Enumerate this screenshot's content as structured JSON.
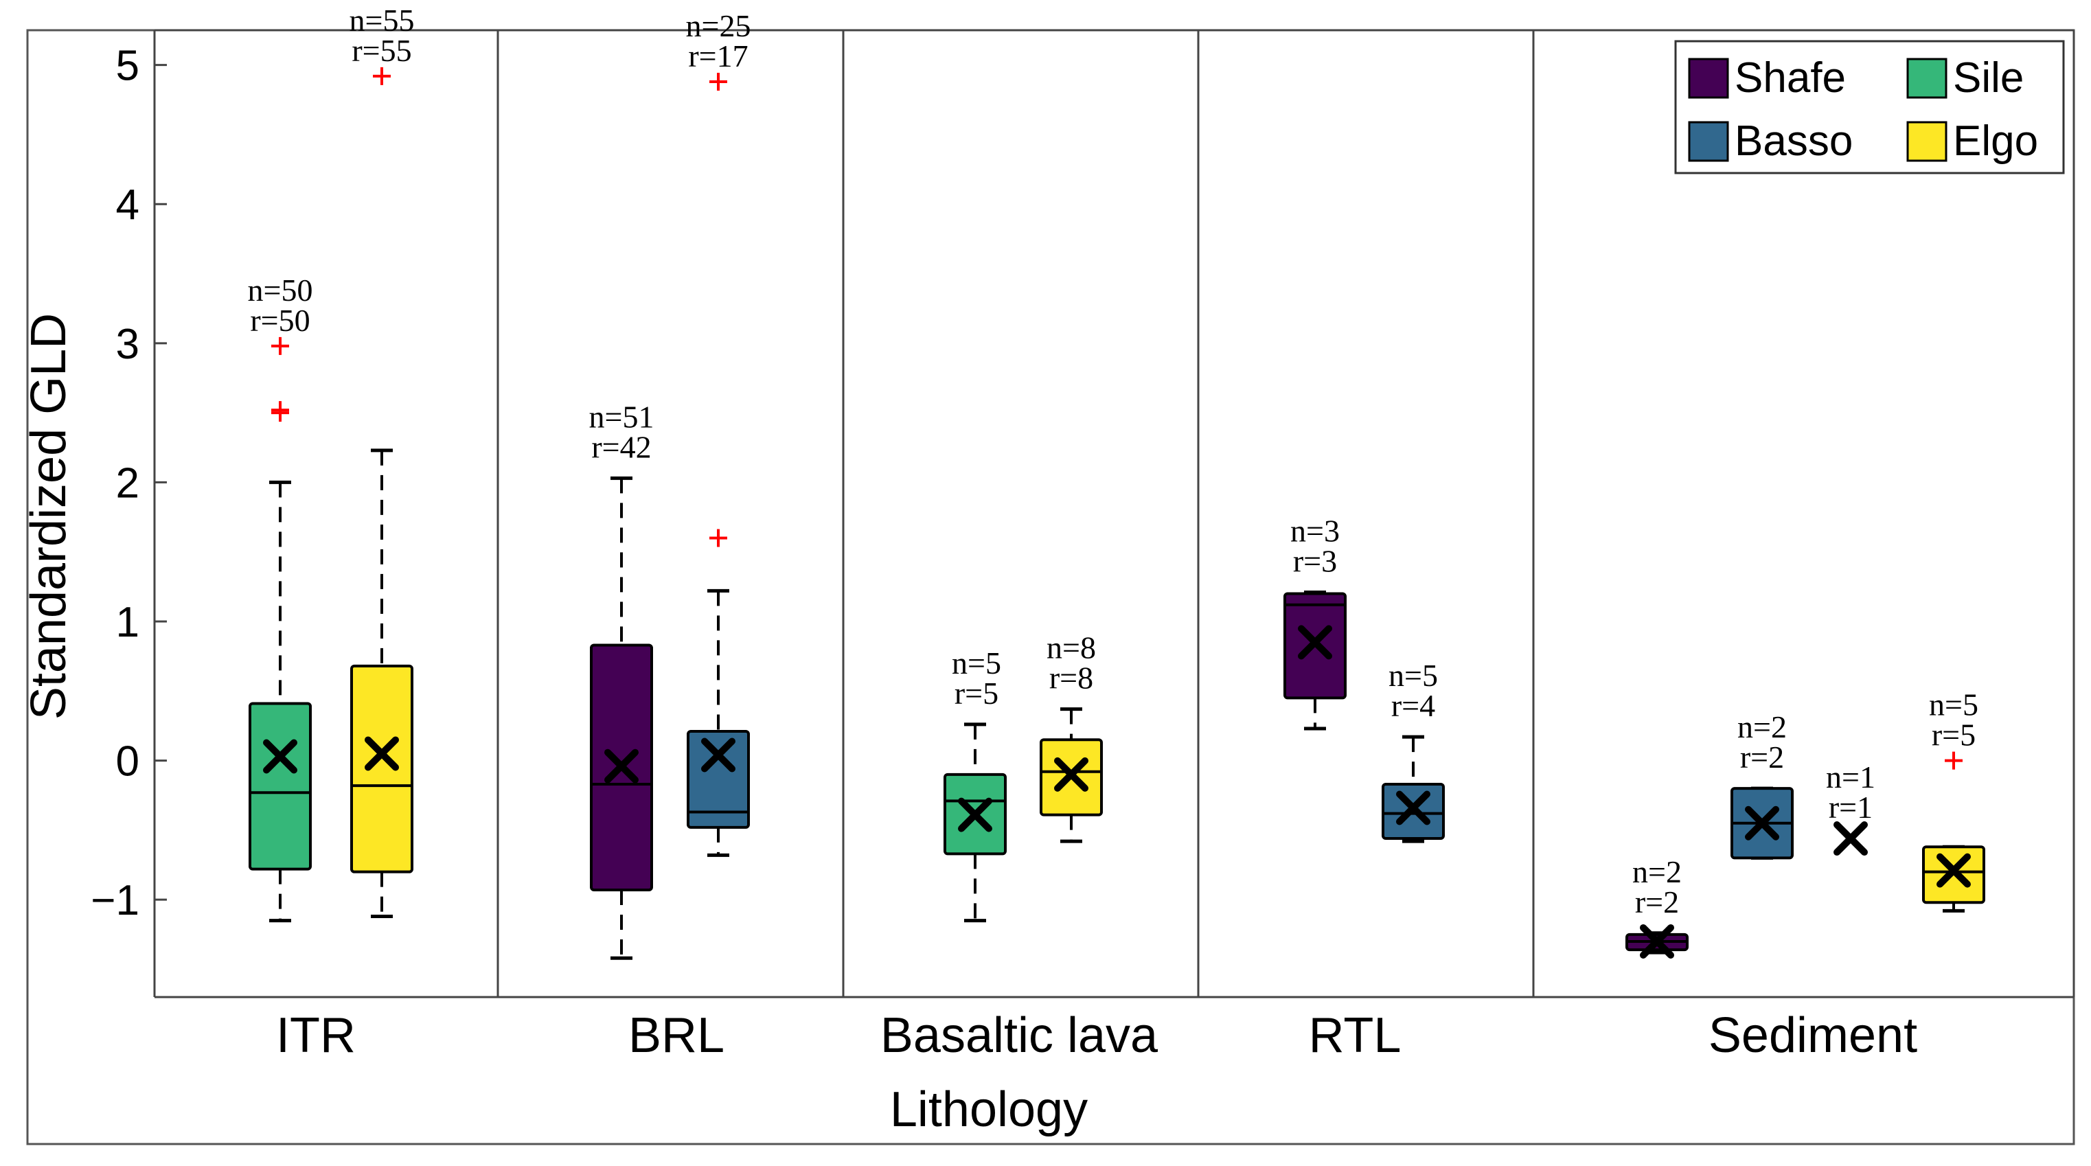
{
  "chart_data": {
    "type": "box",
    "title": "",
    "xlabel": "Lithology",
    "ylabel": "Standardized GLD",
    "ylim": [
      -1.7,
      5.25
    ],
    "yticks": [
      -1,
      0,
      1,
      2,
      3,
      4,
      5
    ],
    "ytick_labels": [
      "−1",
      "0",
      "1",
      "2",
      "3",
      "4",
      "5"
    ],
    "grid": false,
    "legend_position": "top-right",
    "colors": {
      "Shafe": "#440154",
      "Basso": "#31688e",
      "Sile": "#35b779",
      "Elgo": "#fde725",
      "outlier": "#ff0000",
      "line": "#000000"
    },
    "legend": [
      "Shafe",
      "Sile",
      "Basso",
      "Elgo"
    ],
    "groups": [
      {
        "category": "ITR",
        "boxes": [
          {
            "series": "Sile",
            "whisker_low": -1.15,
            "q1": -0.78,
            "median": -0.23,
            "q3": 0.41,
            "whisker_high": 2.0,
            "mean": 0.03,
            "outliers": [
              2.5,
              2.52,
              2.98
            ],
            "n_label": "n=50",
            "r_label": "r=50"
          },
          {
            "series": "Elgo",
            "whisker_low": -1.12,
            "q1": -0.8,
            "median": -0.18,
            "q3": 0.68,
            "whisker_high": 2.23,
            "mean": 0.05,
            "outliers": [
              4.92
            ],
            "n_label": "n=55",
            "r_label": "r=55"
          }
        ]
      },
      {
        "category": "BRL",
        "boxes": [
          {
            "series": "Shafe",
            "whisker_low": -1.42,
            "q1": -0.93,
            "median": -0.17,
            "q3": 0.83,
            "whisker_high": 2.03,
            "mean": -0.04,
            "outliers": [],
            "n_label": "n=51",
            "r_label": "r=42"
          },
          {
            "series": "Basso",
            "whisker_low": -0.68,
            "q1": -0.48,
            "median": -0.37,
            "q3": 0.21,
            "whisker_high": 1.22,
            "mean": 0.04,
            "outliers": [
              1.6,
              4.88
            ],
            "n_label": "n=25",
            "r_label": "r=17"
          }
        ]
      },
      {
        "category": "Basaltic lava",
        "boxes": [
          {
            "series": "Sile",
            "whisker_low": -1.15,
            "q1": -0.67,
            "median": -0.29,
            "q3": -0.1,
            "whisker_high": 0.26,
            "mean": -0.39,
            "outliers": [],
            "n_label": "n=5",
            "r_label": "r=5"
          },
          {
            "series": "Elgo",
            "whisker_low": -0.58,
            "q1": -0.39,
            "median": -0.08,
            "q3": 0.15,
            "whisker_high": 0.37,
            "mean": -0.1,
            "outliers": [],
            "n_label": "n=8",
            "r_label": "r=8"
          }
        ]
      },
      {
        "category": "RTL",
        "boxes": [
          {
            "series": "Shafe",
            "whisker_low": 0.23,
            "q1": 0.45,
            "median": 1.12,
            "q3": 1.2,
            "whisker_high": 1.21,
            "mean": 0.85,
            "outliers": [],
            "n_label": "n=3",
            "r_label": "r=3"
          },
          {
            "series": "Basso",
            "whisker_low": -0.58,
            "q1": -0.56,
            "median": -0.38,
            "q3": -0.17,
            "whisker_high": 0.17,
            "mean": -0.34,
            "outliers": [],
            "n_label": "n=5",
            "r_label": "r=4"
          }
        ]
      },
      {
        "category": "Sediment",
        "boxes": [
          {
            "series": "Shafe",
            "whisker_low": -1.38,
            "q1": -1.36,
            "median": -1.3,
            "q3": -1.25,
            "whisker_high": -1.24,
            "mean": -1.3,
            "outliers": [],
            "n_label": "n=2",
            "r_label": "r=2"
          },
          {
            "series": "Basso",
            "whisker_low": -0.7,
            "q1": -0.7,
            "median": -0.45,
            "q3": -0.2,
            "whisker_high": -0.2,
            "mean": -0.45,
            "outliers": [],
            "n_label": "n=2",
            "r_label": "r=2"
          },
          {
            "series": "Sile",
            "whisker_low": -0.56,
            "q1": -0.56,
            "median": -0.56,
            "q3": -0.56,
            "whisker_high": -0.56,
            "mean": -0.56,
            "outliers": [],
            "n_label": "n=1",
            "r_label": "r=1"
          },
          {
            "series": "Elgo",
            "whisker_low": -1.08,
            "q1": -1.02,
            "median": -0.8,
            "q3": -0.62,
            "whisker_high": -0.62,
            "mean": -0.79,
            "outliers": [
              0.0
            ],
            "n_label": "n=5",
            "r_label": "r=5"
          }
        ]
      }
    ]
  }
}
